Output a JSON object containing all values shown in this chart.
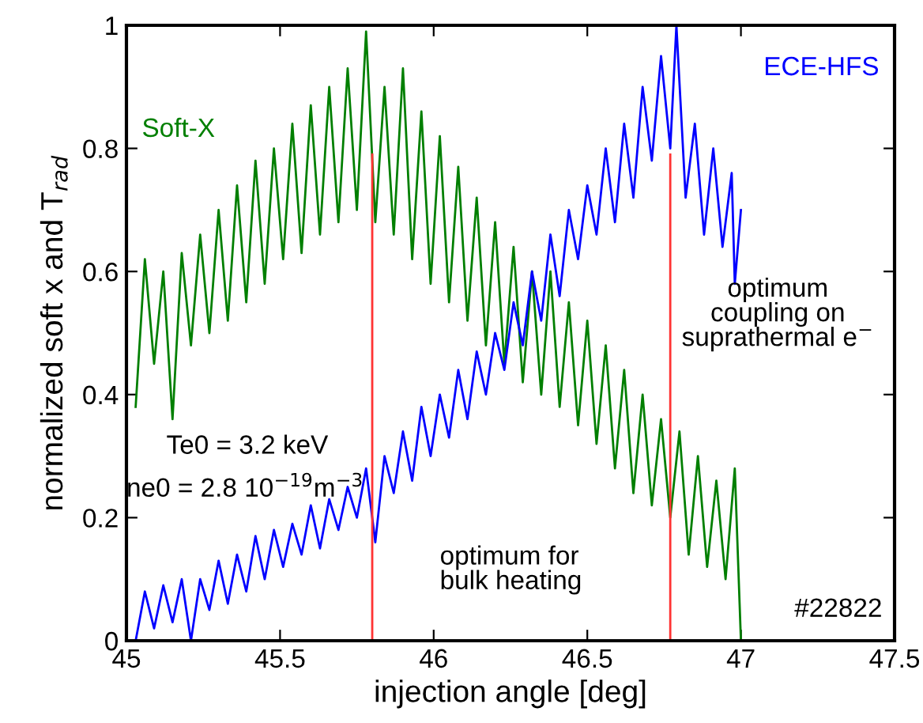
{
  "chart_data": {
    "type": "line",
    "xlabel": "injection angle [deg]",
    "ylabel": "normalized soft x and T$_{rad}$",
    "xlim": [
      45,
      47.5
    ],
    "xticks": [
      45,
      45.5,
      46,
      46.5,
      47,
      47.5
    ],
    "ylim": [
      0,
      1
    ],
    "yticks": [
      0,
      0.2,
      0.4,
      0.6,
      0.8,
      1
    ],
    "grid": false,
    "legend": false,
    "annotations": [
      "Te0 = 3.2 keV",
      "ne0 = 2.8 10$^{−19}$m$^{−3}$",
      "optimum for\nbulk heating",
      "optimum\ncoupling on\nsuprathermal e$^{−}$",
      "#22822"
    ],
    "series": [
      {
        "name": "Soft-X",
        "color": "#007f00",
        "x": [
          45.03,
          45.06,
          45.09,
          45.12,
          45.15,
          45.18,
          45.21,
          45.24,
          45.27,
          45.3,
          45.33,
          45.36,
          45.39,
          45.42,
          45.45,
          45.48,
          45.51,
          45.54,
          45.57,
          45.6,
          45.63,
          45.66,
          45.69,
          45.72,
          45.75,
          45.78,
          45.81,
          45.84,
          45.87,
          45.9,
          45.93,
          45.96,
          45.99,
          46.02,
          46.05,
          46.08,
          46.11,
          46.14,
          46.17,
          46.2,
          46.23,
          46.26,
          46.29,
          46.32,
          46.35,
          46.38,
          46.41,
          46.44,
          46.47,
          46.5,
          46.53,
          46.56,
          46.59,
          46.62,
          46.65,
          46.68,
          46.71,
          46.74,
          46.77,
          46.8,
          46.83,
          46.86,
          46.89,
          46.92,
          46.95,
          46.98,
          47.0
        ],
        "values": [
          0.38,
          0.62,
          0.45,
          0.6,
          0.36,
          0.63,
          0.48,
          0.66,
          0.5,
          0.7,
          0.52,
          0.74,
          0.55,
          0.78,
          0.58,
          0.8,
          0.62,
          0.84,
          0.63,
          0.87,
          0.66,
          0.9,
          0.68,
          0.93,
          0.7,
          0.99,
          0.68,
          0.9,
          0.66,
          0.93,
          0.62,
          0.86,
          0.58,
          0.82,
          0.55,
          0.77,
          0.52,
          0.72,
          0.48,
          0.68,
          0.45,
          0.64,
          0.42,
          0.6,
          0.4,
          0.6,
          0.38,
          0.55,
          0.35,
          0.52,
          0.32,
          0.48,
          0.28,
          0.44,
          0.24,
          0.4,
          0.22,
          0.36,
          0.2,
          0.34,
          0.14,
          0.3,
          0.12,
          0.26,
          0.1,
          0.28,
          0.0
        ]
      },
      {
        "name": "ECE-HFS",
        "color": "#0000ff",
        "x": [
          45.03,
          45.06,
          45.09,
          45.12,
          45.15,
          45.18,
          45.21,
          45.24,
          45.27,
          45.3,
          45.33,
          45.36,
          45.39,
          45.42,
          45.45,
          45.48,
          45.51,
          45.54,
          45.57,
          45.6,
          45.63,
          45.66,
          45.69,
          45.72,
          45.75,
          45.78,
          45.81,
          45.84,
          45.87,
          45.9,
          45.93,
          45.96,
          45.99,
          46.02,
          46.05,
          46.08,
          46.11,
          46.14,
          46.17,
          46.2,
          46.23,
          46.26,
          46.29,
          46.32,
          46.35,
          46.38,
          46.41,
          46.44,
          46.47,
          46.5,
          46.53,
          46.56,
          46.59,
          46.62,
          46.65,
          46.68,
          46.71,
          46.74,
          46.77,
          46.79,
          46.82,
          46.85,
          46.88,
          46.91,
          46.94,
          46.97,
          46.98,
          47.0
        ],
        "values": [
          0.0,
          0.08,
          0.02,
          0.09,
          0.03,
          0.1,
          0.0,
          0.1,
          0.05,
          0.13,
          0.06,
          0.14,
          0.08,
          0.17,
          0.1,
          0.18,
          0.12,
          0.19,
          0.14,
          0.22,
          0.15,
          0.23,
          0.18,
          0.25,
          0.2,
          0.28,
          0.16,
          0.3,
          0.24,
          0.34,
          0.26,
          0.38,
          0.3,
          0.4,
          0.33,
          0.44,
          0.36,
          0.47,
          0.4,
          0.5,
          0.44,
          0.55,
          0.48,
          0.6,
          0.52,
          0.66,
          0.56,
          0.7,
          0.62,
          0.74,
          0.66,
          0.8,
          0.68,
          0.84,
          0.72,
          0.9,
          0.78,
          0.95,
          0.8,
          1.0,
          0.72,
          0.84,
          0.66,
          0.8,
          0.64,
          0.76,
          0.58,
          0.7
        ]
      },
      {
        "color": "#ff3333",
        "x": [
          45.8,
          45.8
        ],
        "values": [
          0,
          0.79
        ]
      },
      {
        "color": "#ff3333",
        "x": [
          46.77,
          46.77
        ],
        "values": [
          0,
          0.79
        ]
      }
    ]
  }
}
